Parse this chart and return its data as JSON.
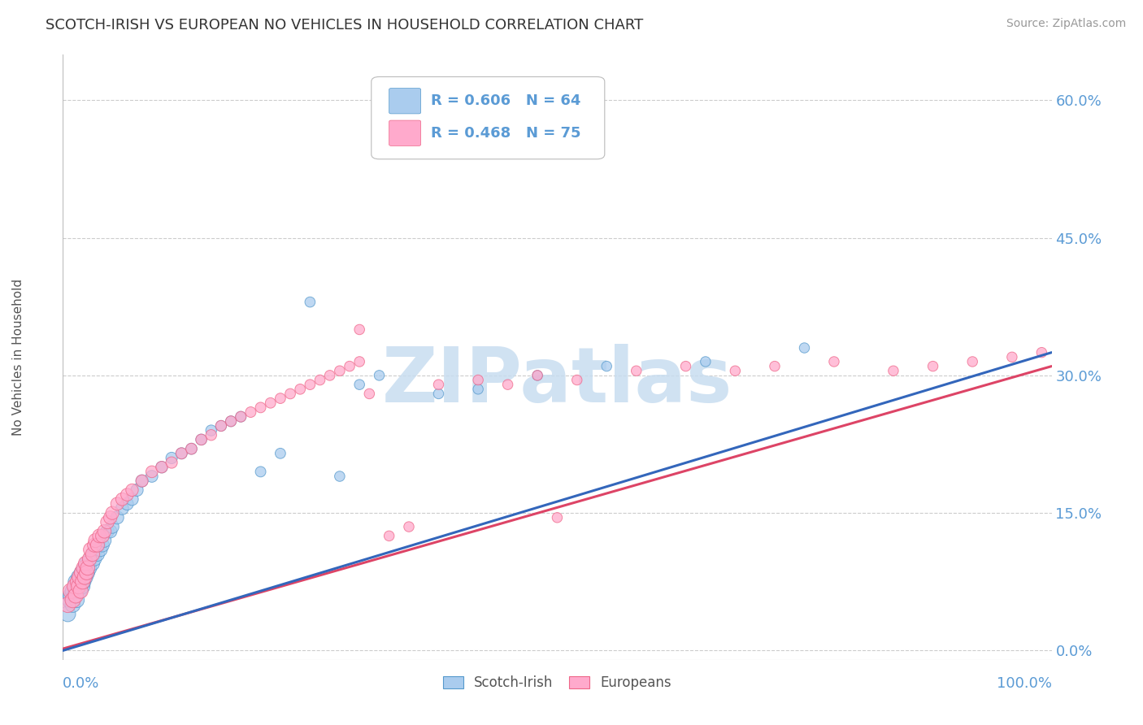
{
  "title": "SCOTCH-IRISH VS EUROPEAN NO VEHICLES IN HOUSEHOLD CORRELATION CHART",
  "source": "Source: ZipAtlas.com",
  "ylabel": "No Vehicles in Household",
  "ytick_labels": [
    "0.0%",
    "15.0%",
    "30.0%",
    "45.0%",
    "60.0%"
  ],
  "ytick_values": [
    0.0,
    0.15,
    0.3,
    0.45,
    0.6
  ],
  "xlim": [
    0.0,
    1.0
  ],
  "ylim": [
    -0.01,
    0.65
  ],
  "series": [
    {
      "name": "Scotch-Irish",
      "color": "#aaccee",
      "edge_color": "#5599cc",
      "R": 0.606,
      "N": 64,
      "line_color": "#3366bb",
      "slope": 0.325,
      "intercept": 0.0
    },
    {
      "name": "Europeans",
      "color": "#ffaacc",
      "edge_color": "#ee6688",
      "R": 0.468,
      "N": 75,
      "line_color": "#dd4466",
      "slope": 0.308,
      "intercept": 0.002
    }
  ],
  "scotch_irish_x": [
    0.005,
    0.007,
    0.008,
    0.01,
    0.01,
    0.012,
    0.013,
    0.014,
    0.015,
    0.015,
    0.016,
    0.017,
    0.018,
    0.019,
    0.02,
    0.02,
    0.021,
    0.022,
    0.023,
    0.024,
    0.025,
    0.026,
    0.027,
    0.028,
    0.03,
    0.031,
    0.032,
    0.033,
    0.035,
    0.036,
    0.038,
    0.04,
    0.042,
    0.045,
    0.048,
    0.05,
    0.055,
    0.06,
    0.065,
    0.07,
    0.075,
    0.08,
    0.09,
    0.1,
    0.11,
    0.12,
    0.13,
    0.14,
    0.15,
    0.16,
    0.17,
    0.18,
    0.2,
    0.22,
    0.25,
    0.28,
    0.3,
    0.32,
    0.38,
    0.42,
    0.48,
    0.55,
    0.65,
    0.75
  ],
  "scotch_irish_y": [
    0.04,
    0.055,
    0.06,
    0.05,
    0.065,
    0.06,
    0.075,
    0.055,
    0.065,
    0.07,
    0.08,
    0.065,
    0.075,
    0.085,
    0.07,
    0.085,
    0.075,
    0.09,
    0.08,
    0.095,
    0.085,
    0.095,
    0.09,
    0.1,
    0.095,
    0.105,
    0.1,
    0.11,
    0.105,
    0.115,
    0.11,
    0.115,
    0.12,
    0.13,
    0.13,
    0.135,
    0.145,
    0.155,
    0.16,
    0.165,
    0.175,
    0.185,
    0.19,
    0.2,
    0.21,
    0.215,
    0.22,
    0.23,
    0.24,
    0.245,
    0.25,
    0.255,
    0.195,
    0.215,
    0.38,
    0.19,
    0.29,
    0.3,
    0.28,
    0.285,
    0.3,
    0.31,
    0.315,
    0.33
  ],
  "europeans_x": [
    0.005,
    0.008,
    0.01,
    0.012,
    0.013,
    0.015,
    0.016,
    0.017,
    0.018,
    0.019,
    0.02,
    0.021,
    0.022,
    0.023,
    0.024,
    0.025,
    0.027,
    0.028,
    0.03,
    0.032,
    0.033,
    0.035,
    0.037,
    0.04,
    0.042,
    0.045,
    0.048,
    0.05,
    0.055,
    0.06,
    0.065,
    0.07,
    0.08,
    0.09,
    0.1,
    0.11,
    0.12,
    0.13,
    0.14,
    0.15,
    0.16,
    0.17,
    0.18,
    0.19,
    0.2,
    0.21,
    0.22,
    0.23,
    0.24,
    0.25,
    0.26,
    0.27,
    0.28,
    0.29,
    0.3,
    0.31,
    0.33,
    0.35,
    0.38,
    0.42,
    0.45,
    0.48,
    0.52,
    0.58,
    0.63,
    0.68,
    0.72,
    0.78,
    0.84,
    0.88,
    0.92,
    0.96,
    0.99,
    0.3,
    0.5
  ],
  "europeans_y": [
    0.05,
    0.065,
    0.055,
    0.07,
    0.06,
    0.075,
    0.07,
    0.08,
    0.065,
    0.085,
    0.075,
    0.09,
    0.08,
    0.095,
    0.085,
    0.09,
    0.1,
    0.11,
    0.105,
    0.115,
    0.12,
    0.115,
    0.125,
    0.125,
    0.13,
    0.14,
    0.145,
    0.15,
    0.16,
    0.165,
    0.17,
    0.175,
    0.185,
    0.195,
    0.2,
    0.205,
    0.215,
    0.22,
    0.23,
    0.235,
    0.245,
    0.25,
    0.255,
    0.26,
    0.265,
    0.27,
    0.275,
    0.28,
    0.285,
    0.29,
    0.295,
    0.3,
    0.305,
    0.31,
    0.315,
    0.28,
    0.125,
    0.135,
    0.29,
    0.295,
    0.29,
    0.3,
    0.295,
    0.305,
    0.31,
    0.305,
    0.31,
    0.315,
    0.305,
    0.31,
    0.315,
    0.32,
    0.325,
    0.35,
    0.145
  ],
  "watermark_text": "ZIPatlas",
  "watermark_color": "#c8ddf0",
  "background_color": "#ffffff",
  "grid_color": "#cccccc",
  "title_fontsize": 13,
  "axis_label_color": "#5b9bd5",
  "legend_R_color": "#5b9bd5"
}
